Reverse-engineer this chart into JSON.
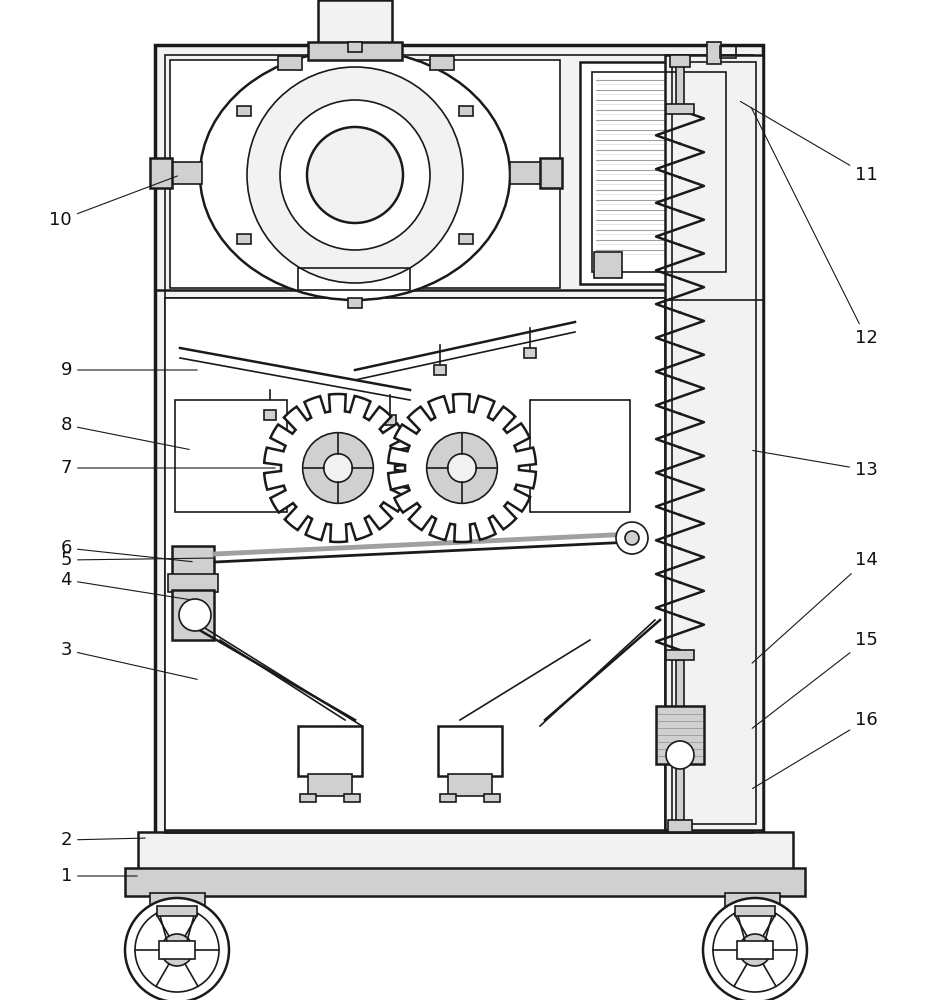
{
  "bg_color": "#ffffff",
  "line_color": "#1a1a1a",
  "fill_light": "#f2f2f2",
  "fill_medium": "#d0d0d0",
  "fill_dark": "#a0a0a0",
  "label_color": "#111111"
}
